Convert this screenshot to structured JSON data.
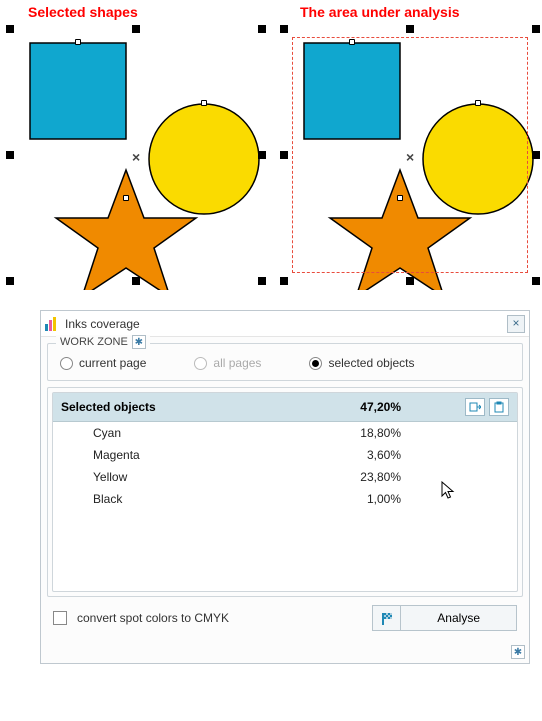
{
  "captions": {
    "left": "Selected shapes",
    "right": "The area under analysis"
  },
  "shapes": {
    "square": {
      "fill": "#10a7cf",
      "stroke": "#000000"
    },
    "circle": {
      "fill": "#fadb00",
      "stroke": "#000000"
    },
    "star": {
      "fill": "#f08a00",
      "stroke": "#000000"
    }
  },
  "panel": {
    "title": "Inks coverage",
    "workzone": {
      "label": "WORK ZONE",
      "options": {
        "current": "current page",
        "all": "all pages",
        "selected": "selected objects"
      },
      "selected": "selected"
    },
    "table": {
      "header": {
        "title": "Selected objects",
        "total": "47,20%"
      },
      "rows": [
        {
          "label": "Cyan",
          "value": "18,80%"
        },
        {
          "label": "Magenta",
          "value": "3,60%"
        },
        {
          "label": "Yellow",
          "value": "23,80%"
        },
        {
          "label": "Black",
          "value": "1,00%"
        }
      ]
    },
    "convert_label": "convert spot colors to CMYK",
    "analyse_label": "Analyse"
  },
  "colors": {
    "panel_border": "#bfc8cf",
    "header_bg": "#d0e2e9",
    "red": "#ff0000",
    "dashed": "#e84c3d",
    "accent": "#1f88b5"
  }
}
